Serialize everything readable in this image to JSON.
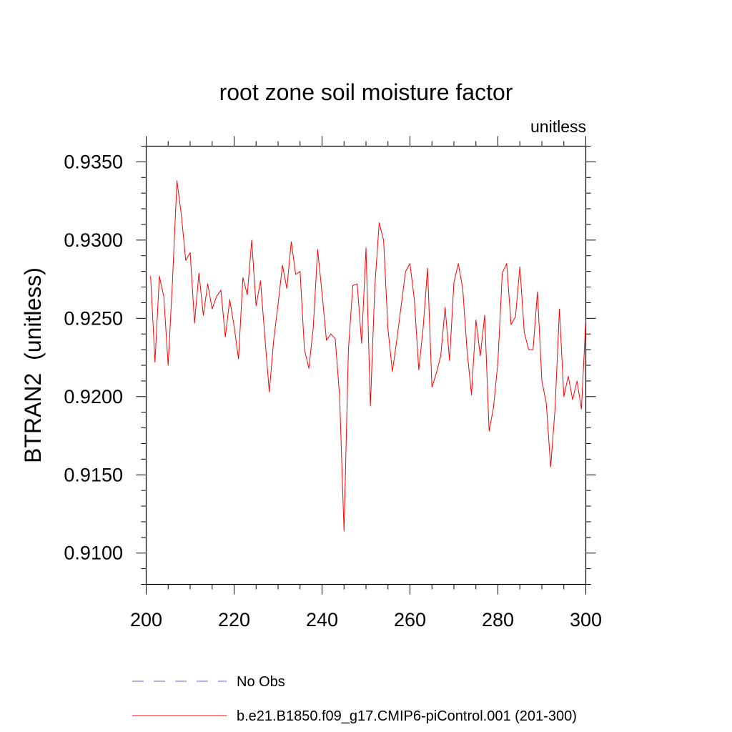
{
  "chart_data": {
    "type": "line",
    "title": "root zone soil moisture factor",
    "units_label": "unitless",
    "ylabel": "BTRAN2  (unitless)",
    "xlabel": "",
    "xlim": [
      200,
      300
    ],
    "ylim": [
      0.908,
      0.936
    ],
    "x_ticks": [
      200,
      220,
      240,
      260,
      280,
      300
    ],
    "x_tick_labels": [
      "200",
      "220",
      "240",
      "260",
      "280",
      "300"
    ],
    "y_ticks": [
      0.91,
      0.915,
      0.92,
      0.925,
      0.93,
      0.935
    ],
    "y_tick_labels": [
      "0.9100",
      "0.9150",
      "0.9200",
      "0.9250",
      "0.9300",
      "0.9350"
    ],
    "grid": false,
    "series": [
      {
        "name": "b.e21.B1850.f09_g17.CMIP6-piControl.001 (201-300)",
        "color": "#ff0000",
        "x": [
          201,
          202,
          203,
          204,
          205,
          206,
          207,
          208,
          209,
          210,
          211,
          212,
          213,
          214,
          215,
          216,
          217,
          218,
          219,
          220,
          221,
          222,
          223,
          224,
          225,
          226,
          227,
          228,
          229,
          230,
          231,
          232,
          233,
          234,
          235,
          236,
          237,
          238,
          239,
          240,
          241,
          242,
          243,
          244,
          245,
          246,
          247,
          248,
          249,
          250,
          251,
          252,
          253,
          254,
          255,
          256,
          257,
          258,
          259,
          260,
          261,
          262,
          263,
          264,
          265,
          266,
          267,
          268,
          269,
          270,
          271,
          272,
          273,
          274,
          275,
          276,
          277,
          278,
          279,
          280,
          281,
          282,
          283,
          284,
          285,
          286,
          287,
          288,
          289,
          290,
          291,
          292,
          293,
          294,
          295,
          296,
          297,
          298,
          299,
          300
        ],
        "values": [
          0.9277,
          0.9222,
          0.9277,
          0.9264,
          0.922,
          0.9275,
          0.9338,
          0.9316,
          0.9287,
          0.9292,
          0.9247,
          0.9279,
          0.9252,
          0.9272,
          0.9256,
          0.9264,
          0.9268,
          0.9238,
          0.9262,
          0.9245,
          0.9224,
          0.9276,
          0.9265,
          0.93,
          0.9258,
          0.9274,
          0.9238,
          0.9203,
          0.9236,
          0.9259,
          0.9284,
          0.9269,
          0.9299,
          0.9278,
          0.928,
          0.923,
          0.9218,
          0.9244,
          0.9294,
          0.9266,
          0.9236,
          0.924,
          0.9237,
          0.92,
          0.9114,
          0.923,
          0.9271,
          0.9272,
          0.9234,
          0.9295,
          0.9194,
          0.927,
          0.9311,
          0.93,
          0.9243,
          0.9216,
          0.9236,
          0.9258,
          0.928,
          0.9285,
          0.9262,
          0.9217,
          0.9244,
          0.9282,
          0.9206,
          0.9215,
          0.9226,
          0.9257,
          0.9223,
          0.9273,
          0.9285,
          0.9269,
          0.9229,
          0.9201,
          0.9249,
          0.9226,
          0.9252,
          0.9178,
          0.9193,
          0.9222,
          0.9279,
          0.9285,
          0.9246,
          0.9251,
          0.9283,
          0.9241,
          0.923,
          0.923,
          0.9267,
          0.921,
          0.9196,
          0.9155,
          0.9192,
          0.9256,
          0.92,
          0.9213,
          0.9198,
          0.921,
          0.9192,
          0.9249
        ]
      }
    ],
    "legend": {
      "placement": "bottom-left",
      "entries": [
        {
          "label": "No Obs",
          "color": "#6a5acd",
          "style": "dashed"
        },
        {
          "label": "b.e21.B1850.f09_g17.CMIP6-piControl.001 (201-300)",
          "color": "#ff0000",
          "style": "solid"
        }
      ]
    }
  }
}
